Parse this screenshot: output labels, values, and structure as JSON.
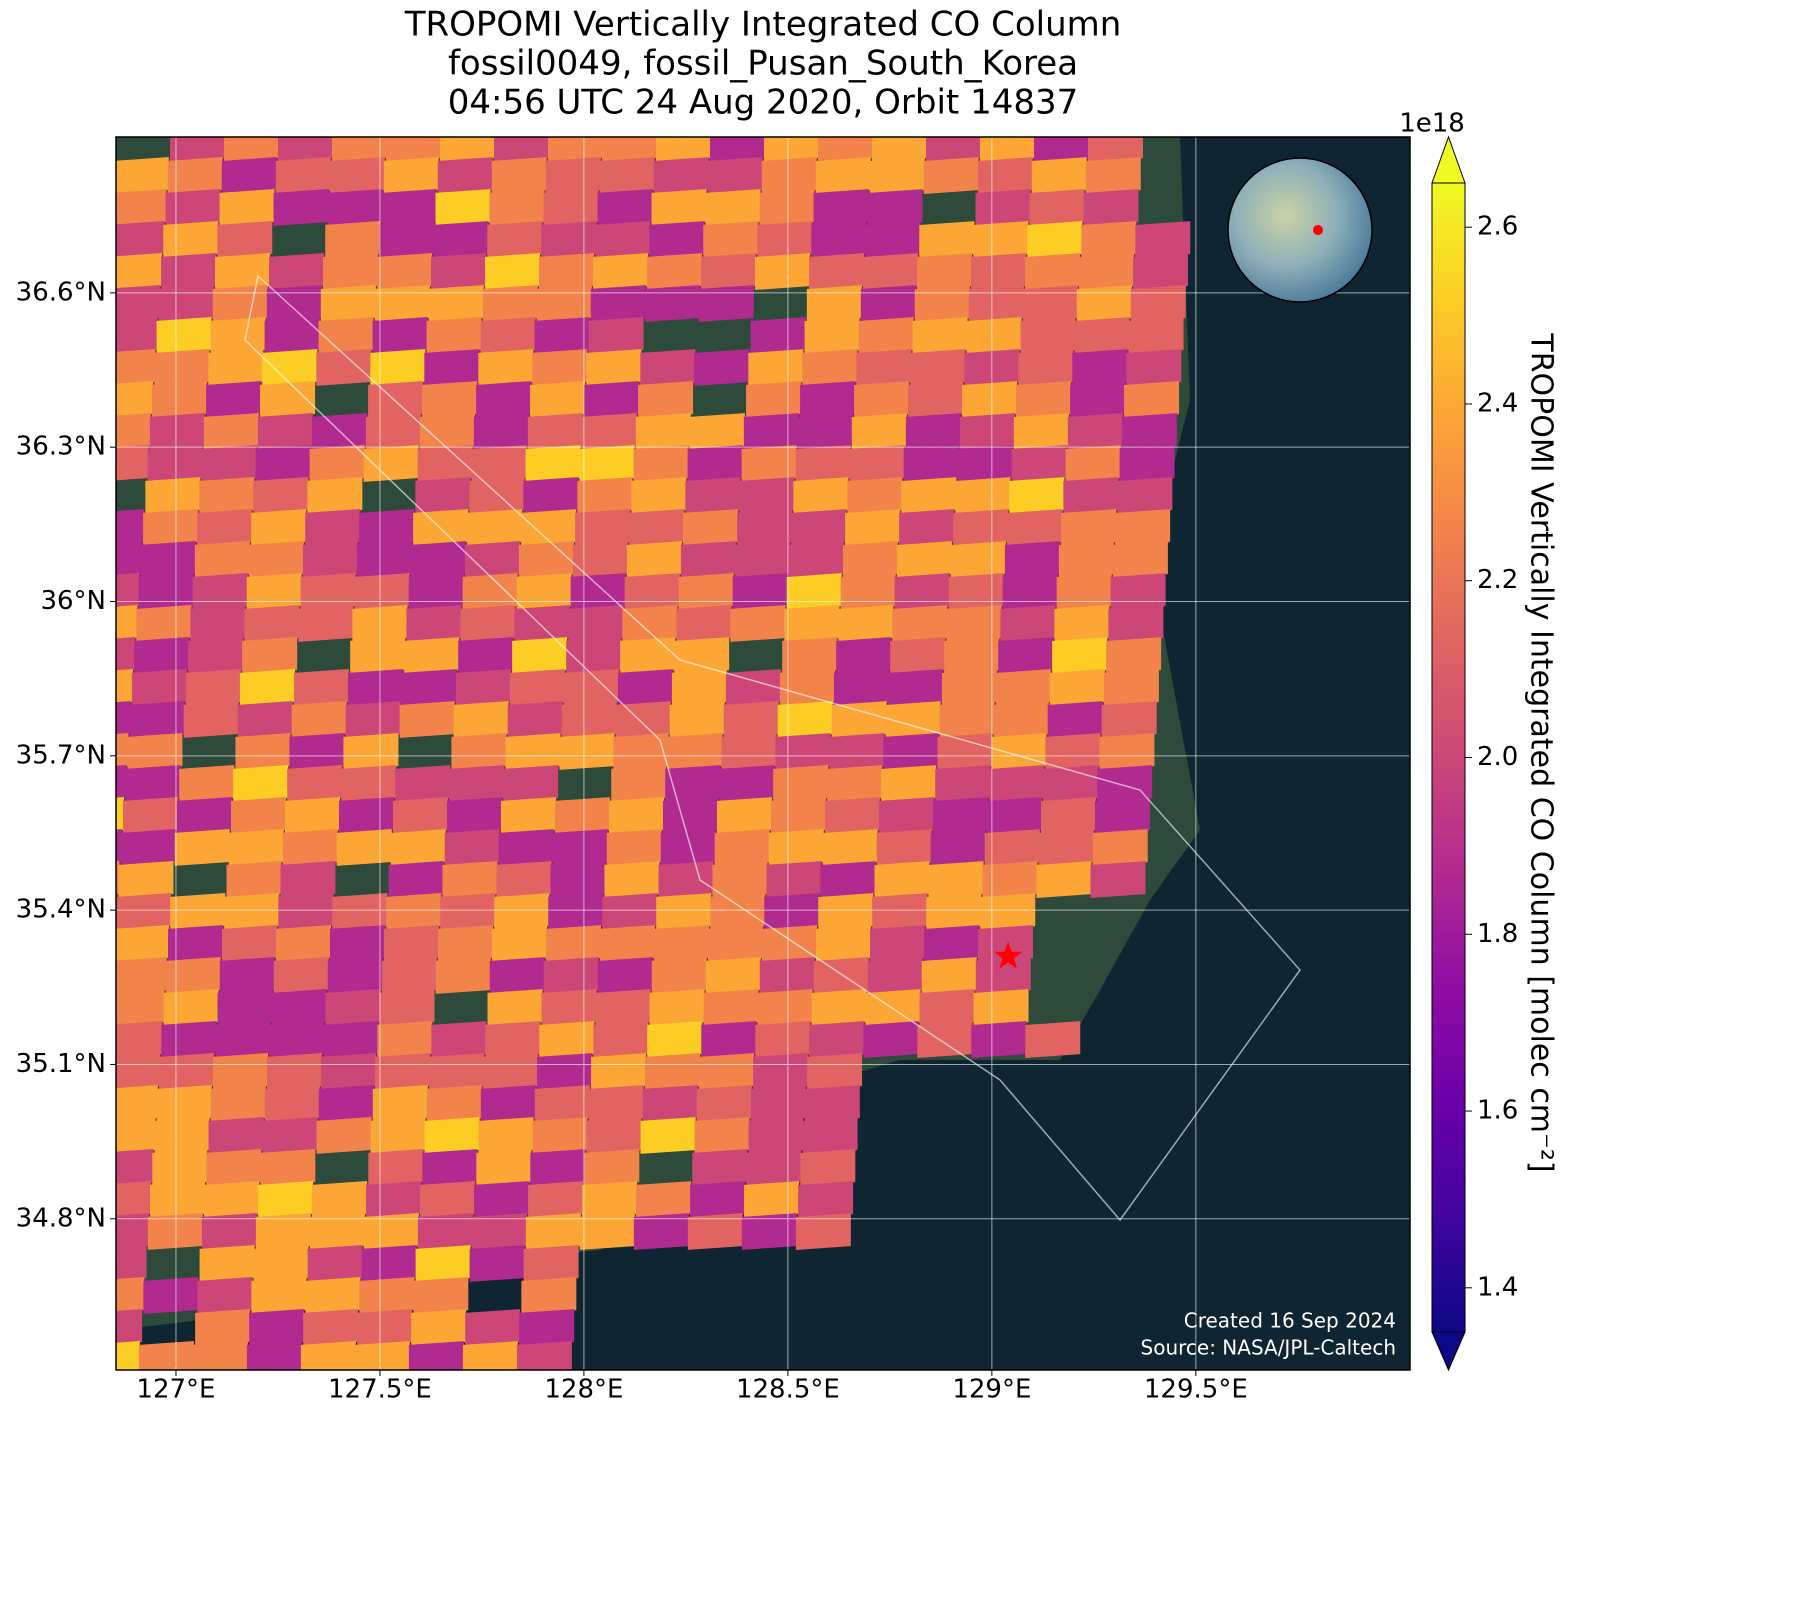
{
  "title": [
    "TROPOMI Vertically Integrated CO Column",
    "fossil0049, fossil_Pusan_South_Korea",
    "04:56 UTC 24 Aug 2020, Orbit 14837"
  ],
  "map": {
    "xlim": [
      126.853,
      130.025
    ],
    "ylim": [
      34.506,
      36.903
    ],
    "xticks": [
      {
        "value": 127,
        "label": "127°E"
      },
      {
        "value": 127.5,
        "label": "127.5°E"
      },
      {
        "value": 128,
        "label": "128°E"
      },
      {
        "value": 128.5,
        "label": "128.5°E"
      },
      {
        "value": 129,
        "label": "129°E"
      },
      {
        "value": 129.5,
        "label": "129.5°E"
      }
    ],
    "yticks": [
      {
        "value": 34.8,
        "label": "34.8°N"
      },
      {
        "value": 35.1,
        "label": "35.1°N"
      },
      {
        "value": 35.4,
        "label": "35.4°N"
      },
      {
        "value": 35.7,
        "label": "35.7°N"
      },
      {
        "value": 36,
        "label": "36°N"
      },
      {
        "value": 36.3,
        "label": "36.3°N"
      },
      {
        "value": 36.6,
        "label": "36.6°N"
      }
    ],
    "grid": true,
    "marker": {
      "lon": 129.04,
      "lat": 35.31,
      "color": "#ff0000"
    }
  },
  "colorbar": {
    "label": "TROPOMI Vertically Integrated CO Column [molec cm⁻²]",
    "offset_label": "1e18",
    "colormap": "plasma",
    "lim": [
      1.35,
      2.65
    ],
    "ticks": [
      1.4,
      1.6,
      1.8,
      {
        "value": 2,
        "label": "2.0"
      },
      2.2,
      2.4,
      2.6
    ]
  },
  "footer": [
    "Created 16 Sep 2024",
    "Source: NASA/JPL-Caltech"
  ]
}
